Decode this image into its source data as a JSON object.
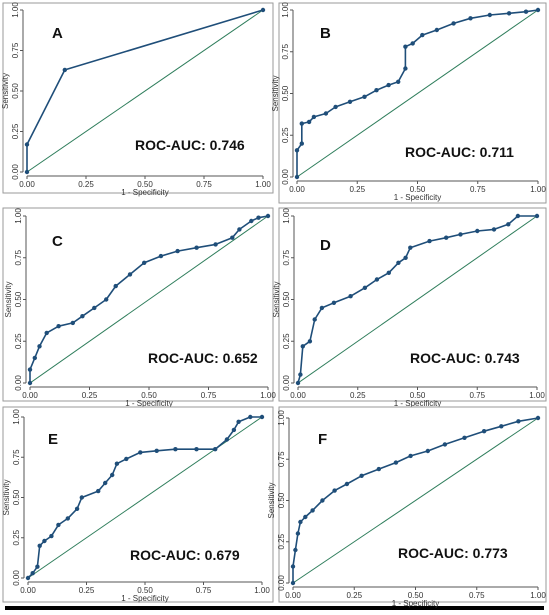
{
  "chart_data": [
    {
      "type": "line",
      "panel_letter": "A",
      "xlabel": "1 - Specificity",
      "ylabel": "Sensitivity",
      "xlim": [
        0,
        1
      ],
      "ylim": [
        0,
        1
      ],
      "x_ticks": [
        "0.00",
        "0.25",
        "0.50",
        "0.75",
        "1.00"
      ],
      "y_ticks": [
        "0.00",
        "0.25",
        "0.50",
        "0.75",
        "1.00"
      ],
      "annotation": "ROC-AUC: 0.746",
      "reference_line": true,
      "series": [
        {
          "points": [
            [
              0,
              0
            ],
            [
              0,
              0.17
            ],
            [
              0.16,
              0.63
            ],
            [
              1,
              1
            ]
          ]
        }
      ]
    },
    {
      "type": "line",
      "panel_letter": "B",
      "xlabel": "1 - Specificity",
      "ylabel": "Sensitivity",
      "xlim": [
        0,
        1
      ],
      "ylim": [
        0,
        1
      ],
      "x_ticks": [
        "0.00",
        "0.25",
        "0.50",
        "0.75",
        "1.00"
      ],
      "y_ticks": [
        "0.00",
        "0.25",
        "0.50",
        "0.75",
        "1.00"
      ],
      "annotation": "ROC-AUC: 0.711",
      "reference_line": true,
      "series": [
        {
          "points": [
            [
              0,
              0
            ],
            [
              0,
              0.16
            ],
            [
              0.02,
              0.2
            ],
            [
              0.02,
              0.32
            ],
            [
              0.05,
              0.33
            ],
            [
              0.07,
              0.36
            ],
            [
              0.12,
              0.38
            ],
            [
              0.16,
              0.42
            ],
            [
              0.22,
              0.45
            ],
            [
              0.28,
              0.48
            ],
            [
              0.33,
              0.52
            ],
            [
              0.38,
              0.55
            ],
            [
              0.42,
              0.57
            ],
            [
              0.45,
              0.65
            ],
            [
              0.45,
              0.78
            ],
            [
              0.48,
              0.8
            ],
            [
              0.52,
              0.85
            ],
            [
              0.58,
              0.88
            ],
            [
              0.65,
              0.92
            ],
            [
              0.72,
              0.95
            ],
            [
              0.8,
              0.97
            ],
            [
              0.88,
              0.98
            ],
            [
              0.95,
              0.99
            ],
            [
              1,
              1
            ]
          ]
        }
      ]
    },
    {
      "type": "line",
      "panel_letter": "C",
      "xlabel": "1 - Specificity",
      "ylabel": "Sensitivity",
      "xlim": [
        0,
        1
      ],
      "ylim": [
        0,
        1
      ],
      "x_ticks": [
        "0.00",
        "0.25",
        "0.50",
        "0.75",
        "1.00"
      ],
      "y_ticks": [
        "0.00",
        "0.25",
        "0.50",
        "0.75",
        "1.00"
      ],
      "annotation": "ROC-AUC: 0.652",
      "reference_line": true,
      "series": [
        {
          "points": [
            [
              0,
              0
            ],
            [
              0,
              0.08
            ],
            [
              0.02,
              0.15
            ],
            [
              0.04,
              0.22
            ],
            [
              0.07,
              0.3
            ],
            [
              0.12,
              0.34
            ],
            [
              0.18,
              0.36
            ],
            [
              0.22,
              0.4
            ],
            [
              0.27,
              0.45
            ],
            [
              0.32,
              0.5
            ],
            [
              0.36,
              0.58
            ],
            [
              0.42,
              0.65
            ],
            [
              0.48,
              0.72
            ],
            [
              0.55,
              0.76
            ],
            [
              0.62,
              0.79
            ],
            [
              0.7,
              0.81
            ],
            [
              0.78,
              0.83
            ],
            [
              0.85,
              0.87
            ],
            [
              0.88,
              0.92
            ],
            [
              0.93,
              0.97
            ],
            [
              0.96,
              0.99
            ],
            [
              1,
              1
            ]
          ]
        }
      ]
    },
    {
      "type": "line",
      "panel_letter": "D",
      "xlabel": "1 - Specificity",
      "ylabel": "Sensitivity",
      "xlim": [
        0,
        1
      ],
      "ylim": [
        0,
        1
      ],
      "x_ticks": [
        "0.00",
        "0.25",
        "0.50",
        "0.75",
        "1.00"
      ],
      "y_ticks": [
        "0.00",
        "0.25",
        "0.50",
        "0.75",
        "1.00"
      ],
      "annotation": "ROC-AUC: 0.743",
      "reference_line": true,
      "series": [
        {
          "points": [
            [
              0,
              0
            ],
            [
              0.01,
              0.05
            ],
            [
              0.02,
              0.22
            ],
            [
              0.05,
              0.25
            ],
            [
              0.07,
              0.38
            ],
            [
              0.1,
              0.45
            ],
            [
              0.15,
              0.48
            ],
            [
              0.22,
              0.52
            ],
            [
              0.28,
              0.57
            ],
            [
              0.33,
              0.62
            ],
            [
              0.38,
              0.66
            ],
            [
              0.42,
              0.72
            ],
            [
              0.45,
              0.75
            ],
            [
              0.47,
              0.81
            ],
            [
              0.55,
              0.85
            ],
            [
              0.62,
              0.87
            ],
            [
              0.68,
              0.89
            ],
            [
              0.75,
              0.91
            ],
            [
              0.82,
              0.92
            ],
            [
              0.88,
              0.95
            ],
            [
              0.92,
              1
            ],
            [
              1,
              1
            ]
          ]
        }
      ]
    },
    {
      "type": "line",
      "panel_letter": "E",
      "xlabel": "1 - Specificity",
      "ylabel": "Sensitivity",
      "xlim": [
        0,
        1
      ],
      "ylim": [
        0,
        1
      ],
      "x_ticks": [
        "0.00",
        "0.25",
        "0.50",
        "0.75",
        "1.00"
      ],
      "y_ticks": [
        "0.00",
        "0.25",
        "0.50",
        "0.75",
        "1.00"
      ],
      "annotation": "ROC-AUC: 0.679",
      "reference_line": true,
      "series": [
        {
          "points": [
            [
              0,
              0
            ],
            [
              0.02,
              0.03
            ],
            [
              0.04,
              0.07
            ],
            [
              0.05,
              0.2
            ],
            [
              0.07,
              0.23
            ],
            [
              0.1,
              0.26
            ],
            [
              0.13,
              0.33
            ],
            [
              0.17,
              0.37
            ],
            [
              0.21,
              0.43
            ],
            [
              0.23,
              0.5
            ],
            [
              0.3,
              0.54
            ],
            [
              0.33,
              0.59
            ],
            [
              0.36,
              0.64
            ],
            [
              0.38,
              0.71
            ],
            [
              0.42,
              0.74
            ],
            [
              0.48,
              0.78
            ],
            [
              0.55,
              0.79
            ],
            [
              0.63,
              0.8
            ],
            [
              0.72,
              0.8
            ],
            [
              0.8,
              0.8
            ],
            [
              0.85,
              0.86
            ],
            [
              0.88,
              0.92
            ],
            [
              0.9,
              0.97
            ],
            [
              0.95,
              1
            ],
            [
              1,
              1
            ]
          ]
        }
      ]
    },
    {
      "type": "line",
      "panel_letter": "F",
      "xlabel": "1 - Specificity",
      "ylabel": "Sensitivity",
      "xlim": [
        0,
        1
      ],
      "ylim": [
        0,
        1
      ],
      "x_ticks": [
        "0.00",
        "0.25",
        "0.50",
        "0.75",
        "1.00"
      ],
      "y_ticks": [
        "0.00",
        "0.25",
        "0.50",
        "0.75",
        "1.00"
      ],
      "annotation": "ROC-AUC: 0.773",
      "reference_line": true,
      "series": [
        {
          "points": [
            [
              0,
              0
            ],
            [
              0,
              0.1
            ],
            [
              0.01,
              0.2
            ],
            [
              0.02,
              0.3
            ],
            [
              0.03,
              0.37
            ],
            [
              0.05,
              0.4
            ],
            [
              0.08,
              0.44
            ],
            [
              0.12,
              0.5
            ],
            [
              0.17,
              0.56
            ],
            [
              0.22,
              0.6
            ],
            [
              0.28,
              0.65
            ],
            [
              0.35,
              0.69
            ],
            [
              0.42,
              0.73
            ],
            [
              0.48,
              0.77
            ],
            [
              0.55,
              0.8
            ],
            [
              0.62,
              0.84
            ],
            [
              0.7,
              0.88
            ],
            [
              0.78,
              0.92
            ],
            [
              0.85,
              0.95
            ],
            [
              0.92,
              0.98
            ],
            [
              1,
              1
            ]
          ]
        }
      ]
    }
  ]
}
